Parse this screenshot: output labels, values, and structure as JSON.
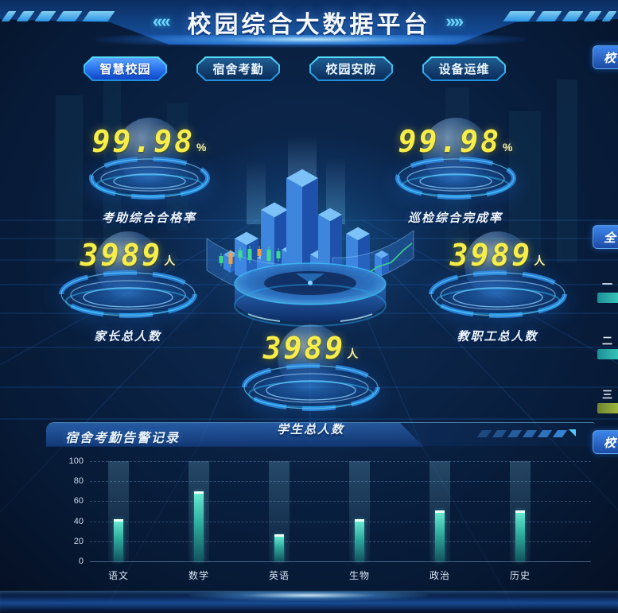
{
  "header": {
    "title": "校园综合大数据平台",
    "left_chevrons": "«",
    "right_chevrons": "»"
  },
  "tabs": [
    {
      "label": "智慧校园",
      "active": true
    },
    {
      "label": "宿舍考勤",
      "active": false
    },
    {
      "label": "校园安防",
      "active": false
    },
    {
      "label": "设备运维",
      "active": false
    }
  ],
  "kpis": [
    {
      "value": "99.98",
      "unit": "%",
      "label": "考助综合合格率"
    },
    {
      "value": "99.98",
      "unit": "%",
      "label": "巡检综合完成率"
    },
    {
      "value": "3989",
      "unit": "人",
      "label": "家长总人数"
    },
    {
      "value": "3989",
      "unit": "人",
      "label": "教职工总人数"
    },
    {
      "value": "3989",
      "unit": "人",
      "label": "学生总人数"
    }
  ],
  "chart_panel": {
    "title": "宿舍考勤告警记录"
  },
  "chart_data": {
    "type": "bar",
    "title": "宿舍考勤告警记录",
    "categories": [
      "语文",
      "数学",
      "英语",
      "生物",
      "政治",
      "历史"
    ],
    "values": [
      42,
      70,
      27,
      42,
      51,
      51
    ],
    "xlabel": "",
    "ylabel": "",
    "ylim": [
      0,
      100
    ],
    "yticks": [
      0,
      20,
      40,
      60,
      80,
      100
    ],
    "grid": true,
    "legend": false,
    "bar_color_top": "#67e8d0",
    "bar_color_bottom": "#11535f",
    "bar_cap_color": "#eafff8"
  },
  "right_edge": {
    "top_tab_partial": "校",
    "mid_tab_partial": "全",
    "bottom_tab_partial": "校",
    "rank_items": [
      {
        "label": "一",
        "bar_color": "linear-gradient(90deg,#1d8e96,#38cdbb)"
      },
      {
        "label": "二",
        "bar_color": "linear-gradient(90deg,#1d8e96,#38cdbb)"
      },
      {
        "label": "三",
        "bar_color": "linear-gradient(90deg,#6d8430,#a4bf3e)"
      }
    ]
  },
  "colors": {
    "accent_cyan": "#35c8ff",
    "number_yellow": "#f7ee4a",
    "tab_active_blue": "#2f7bf2",
    "background_navy": "#0a2244"
  }
}
